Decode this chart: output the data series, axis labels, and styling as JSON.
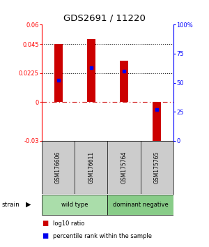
{
  "title": "GDS2691 / 11220",
  "samples": [
    "GSM176606",
    "GSM176611",
    "GSM175764",
    "GSM175765"
  ],
  "log10_ratio": [
    0.045,
    0.049,
    0.032,
    -0.034
  ],
  "percentile_rank": [
    52,
    63,
    60,
    27
  ],
  "groups": [
    {
      "label": "wild type",
      "samples": [
        0,
        1
      ],
      "color": "#aaddaa"
    },
    {
      "label": "dominant negative",
      "samples": [
        2,
        3
      ],
      "color": "#88cc88"
    }
  ],
  "ylim_left": [
    -0.03,
    0.06
  ],
  "ylim_right": [
    0,
    100
  ],
  "yticks_left": [
    -0.03,
    0,
    0.0225,
    0.045,
    0.06
  ],
  "yticks_left_labels": [
    "-0.03",
    "0",
    "0.0225",
    "0.045",
    "0.06"
  ],
  "yticks_right": [
    0,
    25,
    50,
    75,
    100
  ],
  "yticks_right_labels": [
    "0",
    "25",
    "50",
    "75",
    "100%"
  ],
  "hlines_dotted": [
    0.045,
    0.0225
  ],
  "bar_color": "#cc0000",
  "marker_color": "#0000ee",
  "bar_width": 0.25,
  "background_color": "#ffffff",
  "plot_bg": "#ffffff",
  "label_area_bg": "#cccccc",
  "legend_red": "log10 ratio",
  "legend_blue": "percentile rank within the sample"
}
